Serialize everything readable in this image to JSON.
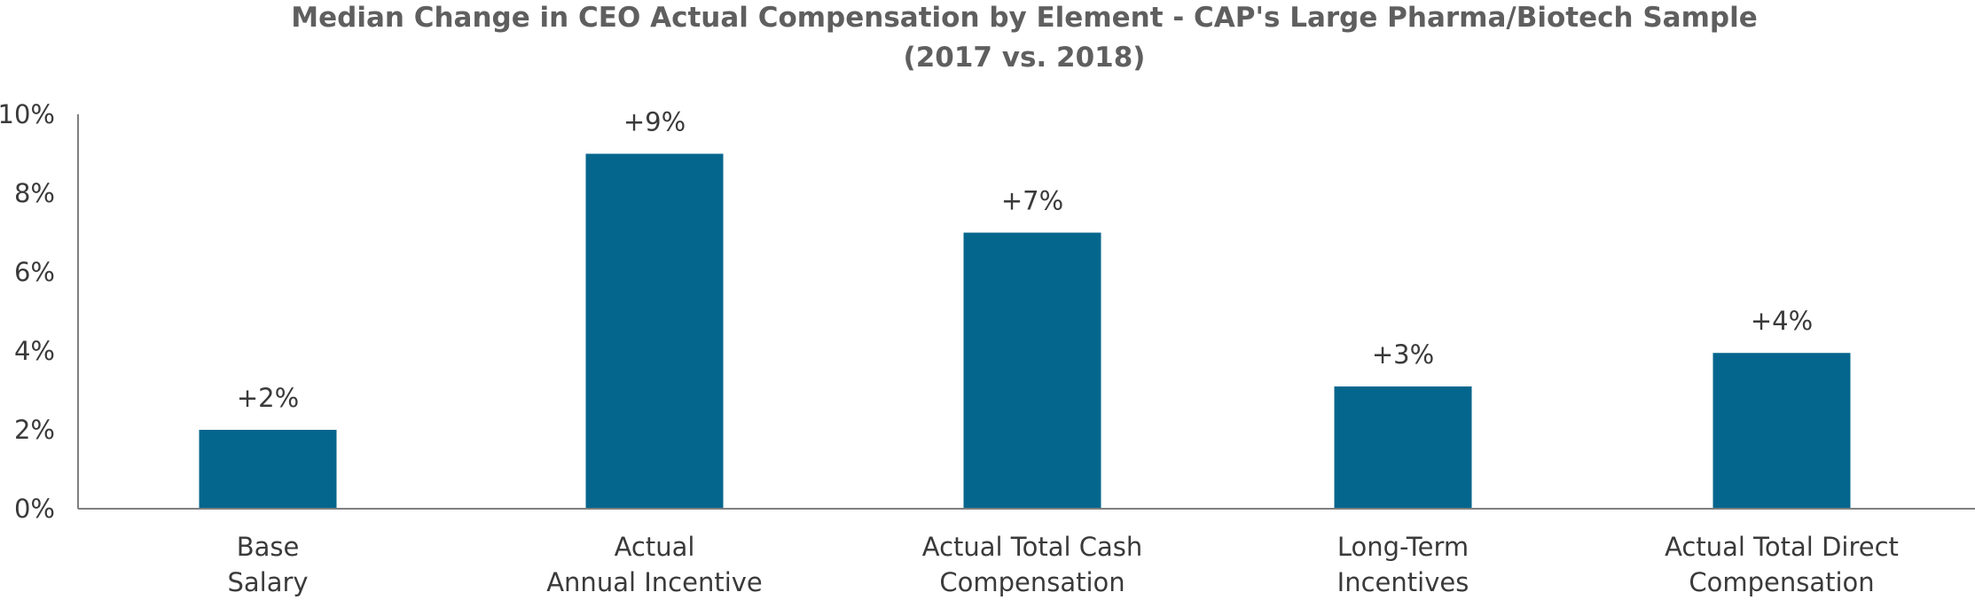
{
  "chart_data": {
    "type": "bar",
    "title_lines": [
      "Median Change in CEO Actual Compensation by Element - CAP's Large Pharma/Biotech Sample",
      "(2017 vs. 2018)"
    ],
    "categories": [
      [
        "Base",
        "Salary"
      ],
      [
        "Actual",
        "Annual Incentive"
      ],
      [
        "Actual Total Cash",
        "Compensation"
      ],
      [
        "Long-Term",
        "Incentives"
      ],
      [
        "Actual Total Direct",
        "Compensation"
      ]
    ],
    "values": [
      2,
      9,
      7,
      3.1,
      3.95
    ],
    "data_labels": [
      "+2%",
      "+9%",
      "+7%",
      "+3%",
      "+4%"
    ],
    "y_ticks": [
      0,
      2,
      4,
      6,
      8,
      10
    ],
    "y_tick_labels": [
      "0%",
      "2%",
      "4%",
      "6%",
      "8%",
      "10%"
    ],
    "ylim": [
      0,
      10
    ],
    "grid": false,
    "legend": "none",
    "bar_color": "#05668d",
    "axis_color": "#7f7f7f"
  }
}
